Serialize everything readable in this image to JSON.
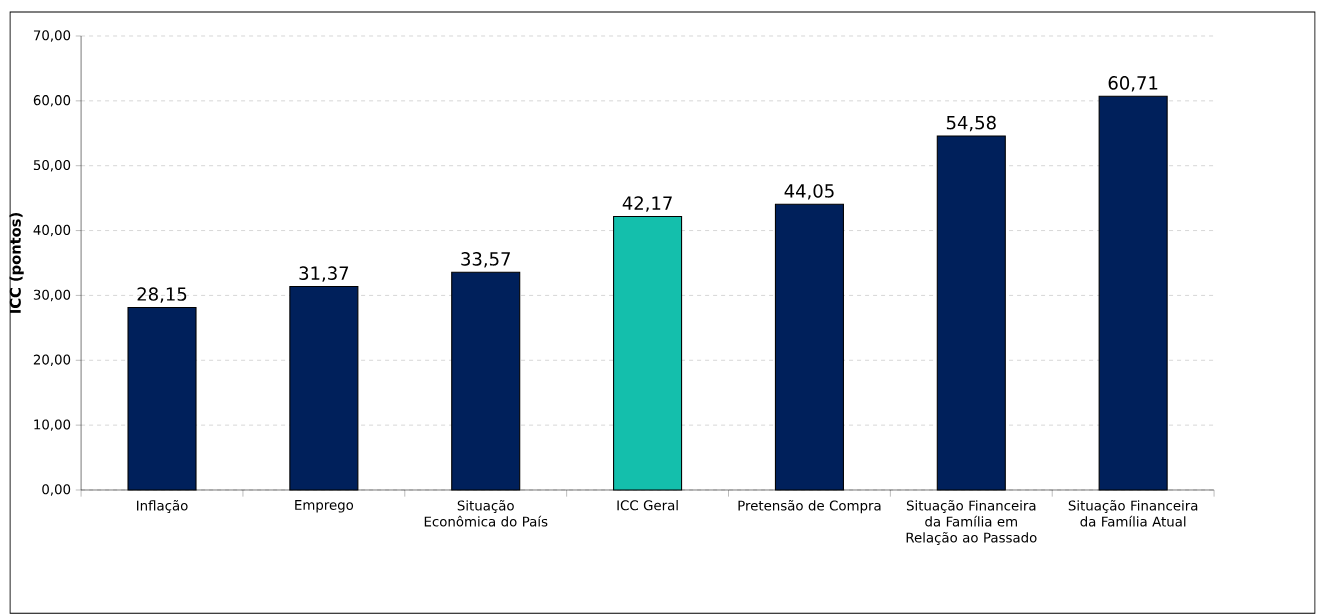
{
  "chart_data": {
    "type": "bar",
    "ylabel": "ICC (pontos)",
    "categories": [
      "Inflação",
      "Emprego",
      "Situação Econômica do País",
      "ICC Geral",
      "Pretensão de Compra",
      "Situação Financeira da Família em Relação ao Passado",
      "Situação Financeira da Família Atual"
    ],
    "values": [
      28.15,
      31.37,
      33.57,
      42.17,
      44.05,
      54.58,
      60.71
    ],
    "colors": [
      "#00205b",
      "#00205b",
      "#00205b",
      "#14bfac",
      "#00205b",
      "#00205b",
      "#00205b"
    ],
    "value_labels": [
      "28,15",
      "31,37",
      "33,57",
      "42,17",
      "44,05",
      "54,58",
      "60,71"
    ],
    "ylim": [
      0,
      70
    ],
    "yticks": [
      {
        "value": 0,
        "label": "0,00"
      },
      {
        "value": 10,
        "label": "10,00"
      },
      {
        "value": 20,
        "label": "20,00"
      },
      {
        "value": 30,
        "label": "30,00"
      },
      {
        "value": 40,
        "label": "40,00"
      },
      {
        "value": 50,
        "label": "50,00"
      },
      {
        "value": 60,
        "label": "60,00"
      },
      {
        "value": 70,
        "label": "70,00"
      }
    ],
    "grid": "y"
  }
}
